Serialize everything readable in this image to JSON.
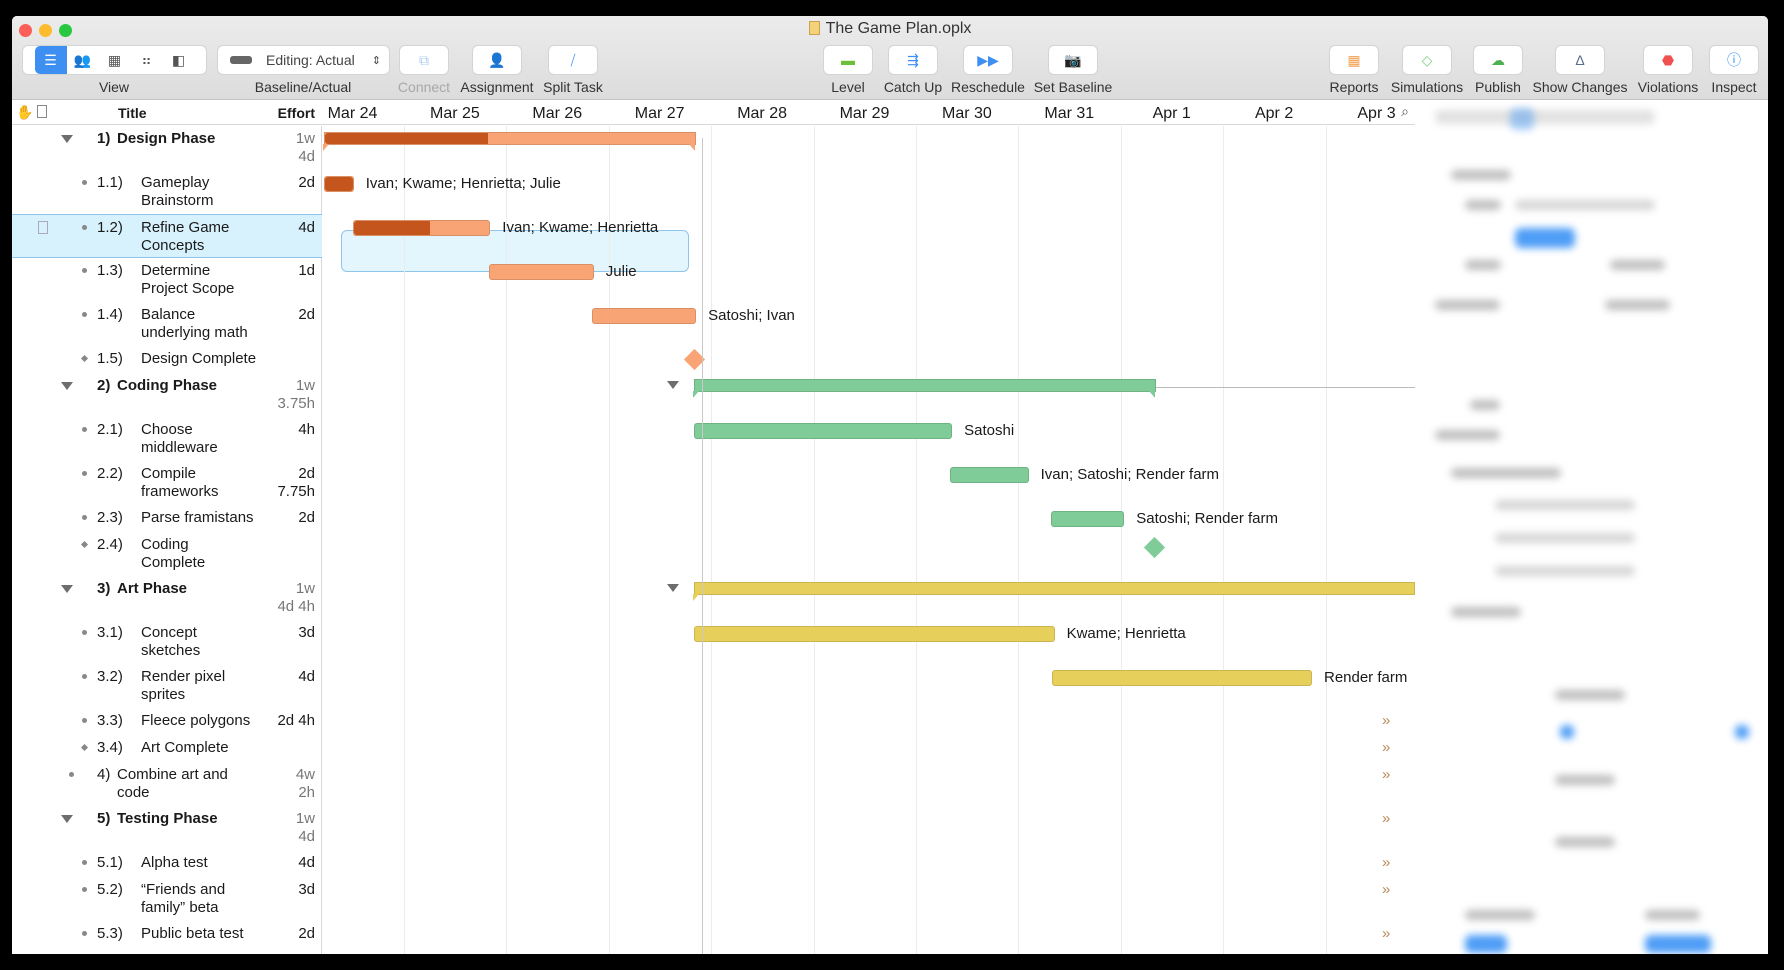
{
  "window": {
    "title": "The Game Plan.oplx"
  },
  "toolbar": {
    "view_label": "View",
    "baseline_popup": "Editing: Actual",
    "baseline_label": "Baseline/Actual",
    "connect": "Connect",
    "assignment": "Assignment",
    "split_task": "Split Task",
    "level": "Level",
    "catch_up": "Catch Up",
    "reschedule": "Reschedule",
    "set_baseline": "Set Baseline",
    "reports": "Reports",
    "simulations": "Simulations",
    "publish": "Publish",
    "show_changes": "Show Changes",
    "violations": "Violations",
    "inspect": "Inspect"
  },
  "columns": {
    "title": "Title",
    "effort": "Effort"
  },
  "timeline": {
    "dates": [
      "Mar 24",
      "Mar 25",
      "Mar 26",
      "Mar 27",
      "Mar 28",
      "Mar 29",
      "Mar 30",
      "Mar 31",
      "Apr 1",
      "Apr 2",
      "Apr 3"
    ]
  },
  "colors": {
    "design_done": "#c4561d",
    "design": "#f9a474",
    "coding": "#7fcc98",
    "art": "#e7cf5c",
    "selection": "#d8f2fd"
  },
  "tasks": [
    {
      "num": "1)",
      "title": "Design Phase",
      "effort": "1w\n4d",
      "kind": "group",
      "expanded": true,
      "color": "design",
      "bar": {
        "start": "Mar 24 05:20",
        "end": "Mar 27 20:30",
        "progress": 0.44
      }
    },
    {
      "num": "1.1)",
      "title": "Gameplay\nBrainstorm",
      "effort": "2d",
      "kind": "task",
      "color": "design",
      "bar": {
        "start": "Mar 24 05:20",
        "end": "Mar 24 12:15",
        "progress": 1.0
      },
      "resources": "Ivan; Kwame; Henrietta; Julie"
    },
    {
      "num": "1.2)",
      "title": "Refine Game\nConcepts",
      "effort": "4d",
      "kind": "task",
      "color": "design",
      "selected": true,
      "bar": {
        "start": "Mar 24 12:00",
        "end": "Mar 25 20:15",
        "progress": 0.56
      },
      "resources": "Ivan; Kwame; Henrietta"
    },
    {
      "num": "1.3)",
      "title": "Determine\nProject Scope",
      "effort": "1d",
      "kind": "task",
      "color": "design",
      "bar": {
        "start": "Mar 25 20:00",
        "end": "Mar 26 20:30",
        "progress": 0
      },
      "resources": "Julie"
    },
    {
      "num": "1.4)",
      "title": "Balance\nunderlying math",
      "effort": "2d",
      "kind": "task",
      "color": "design",
      "bar": {
        "start": "Mar 26 20:00",
        "end": "Mar 27 20:30",
        "progress": 0
      },
      "resources": "Satoshi; Ivan"
    },
    {
      "num": "1.5)",
      "title": "Design Complete",
      "effort": "",
      "kind": "milestone",
      "color": "design",
      "milestone": "Mar 27 20:00"
    },
    {
      "num": "2)",
      "title": "Coding Phase",
      "effort": "1w\n3.75h",
      "kind": "group",
      "expanded": true,
      "color": "coding",
      "bar": {
        "start": "Mar 27 20:00",
        "end": "Apr 1 08:15",
        "progress": 0
      }
    },
    {
      "num": "2.1)",
      "title": "Choose\nmiddleware",
      "effort": "4h",
      "kind": "task",
      "color": "coding",
      "bar": {
        "start": "Mar 27 20:00",
        "end": "Mar 30 08:30",
        "progress": 0
      },
      "resources": "Satoshi"
    },
    {
      "num": "2.2)",
      "title": "Compile\nframeworks",
      "effort": "2d\n7.75h",
      "kind": "task",
      "color": "coding",
      "bar": {
        "start": "Mar 30 08:00",
        "end": "Mar 31 02:25",
        "progress": 0
      },
      "resources": "Ivan; Satoshi; Render farm"
    },
    {
      "num": "2.3)",
      "title": "Parse framistans",
      "effort": "2d",
      "kind": "task",
      "color": "coding",
      "bar": {
        "start": "Mar 31 07:45",
        "end": "Apr 1 00:50",
        "progress": 0
      },
      "resources": "Satoshi; Render farm"
    },
    {
      "num": "2.4)",
      "title": "Coding\nComplete",
      "effort": "",
      "kind": "milestone",
      "color": "coding",
      "milestone": "Apr 1 07:45"
    },
    {
      "num": "3)",
      "title": "Art Phase",
      "effort": "1w\n4d 4h",
      "kind": "group",
      "expanded": true,
      "color": "art",
      "bar": {
        "start": "Mar 27 20:00",
        "end": null,
        "progress": 0
      }
    },
    {
      "num": "3.1)",
      "title": "Concept\nsketches",
      "effort": "3d",
      "kind": "task",
      "color": "art",
      "bar": {
        "start": "Mar 27 20:00",
        "end": "Mar 31 08:30",
        "progress": 0
      },
      "resources": "Kwame; Henrietta"
    },
    {
      "num": "3.2)",
      "title": "Render pixel\nsprites",
      "effort": "4d",
      "kind": "task",
      "color": "art",
      "bar": {
        "start": "Mar 31 08:00",
        "end": "Apr 2 20:50",
        "progress": 0
      },
      "resources": "Render farm"
    },
    {
      "num": "3.3)",
      "title": "Fleece polygons",
      "effort": "2d 4h",
      "kind": "task",
      "offscreen": true
    },
    {
      "num": "3.4)",
      "title": "Art Complete",
      "effort": "",
      "kind": "milestone",
      "offscreen": true
    },
    {
      "num": "4)",
      "title": "Combine art and\ncode",
      "effort": "4w\n2h",
      "kind": "top-task",
      "offscreen": true
    },
    {
      "num": "5)",
      "title": "Testing Phase",
      "effort": "1w\n4d",
      "kind": "group",
      "expanded": true,
      "offscreen": true
    },
    {
      "num": "5.1)",
      "title": "Alpha test",
      "effort": "4d",
      "kind": "task",
      "offscreen": true
    },
    {
      "num": "5.2)",
      "title": "“Friends and\nfamily” beta",
      "effort": "3d",
      "kind": "task",
      "offscreen": true
    },
    {
      "num": "5.3)",
      "title": "Public beta test",
      "effort": "2d",
      "kind": "task",
      "offscreen": true
    }
  ]
}
